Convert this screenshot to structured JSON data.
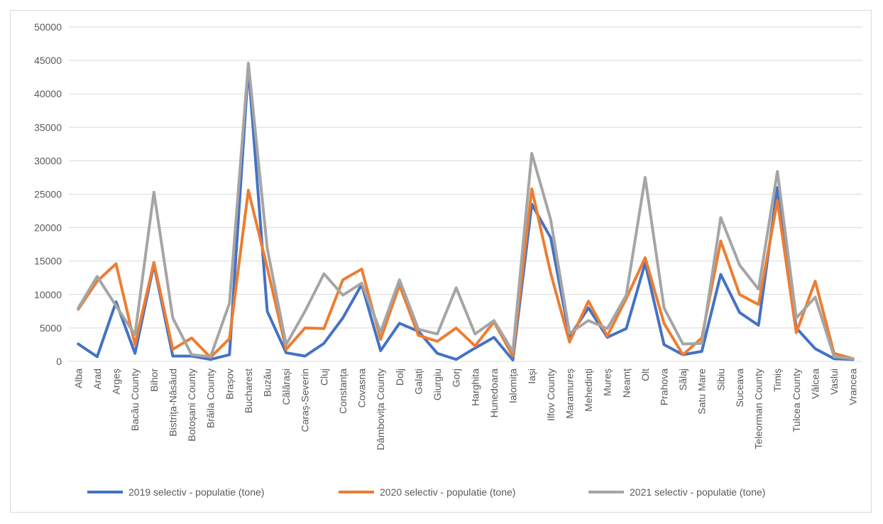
{
  "chart_data": {
    "type": "line",
    "title": "",
    "xlabel": "",
    "ylabel": "",
    "ylim": [
      0,
      50000
    ],
    "yticks": [
      0,
      5000,
      10000,
      15000,
      20000,
      25000,
      30000,
      35000,
      40000,
      45000,
      50000
    ],
    "grid": true,
    "legend_position": "bottom",
    "categories": [
      "Alba",
      "Arad",
      "Argeș",
      "Bacău County",
      "Bihor",
      "Bistrița-Năsăud",
      "Botoșani County",
      "Brăila County",
      "Brașov",
      "Bucharest",
      "Buzău",
      "Călărași",
      "Caraș-Severin",
      "Cluj",
      "Constanța",
      "Covasna",
      "Dâmbovița County",
      "Dolj",
      "Galați",
      "Giurgiu",
      "Gorj",
      "Harghita",
      "Hunedoara",
      "Ialomița",
      "Iași",
      "Ilfov County",
      "Maramureș",
      "Mehedinți",
      "Mureș",
      "Neamț",
      "Olt",
      "Prahova",
      "Sălaj",
      "Satu Mare",
      "Sibiu",
      "Suceava",
      "Teleorman County",
      "Timiș",
      "Tulcea County",
      "Vâlcea",
      "Vaslui",
      "Vrancea"
    ],
    "series": [
      {
        "name": "2019 selectiv - populatie (tone)",
        "color": "#4472c4",
        "values": [
          2600,
          700,
          8900,
          1200,
          14500,
          800,
          800,
          300,
          1000,
          44000,
          7500,
          1300,
          800,
          2700,
          6500,
          11500,
          1600,
          5700,
          4500,
          1200,
          300,
          2000,
          3600,
          200,
          23500,
          18500,
          3700,
          8000,
          3600,
          4900,
          14700,
          2500,
          1000,
          1500,
          13000,
          7300,
          5400,
          26000,
          5000,
          1900,
          400,
          300
        ]
      },
      {
        "name": "2020 selectiv - populatie (tone)",
        "color": "#ed7d31",
        "values": [
          7800,
          12000,
          14600,
          2500,
          14800,
          1800,
          3500,
          600,
          3400,
          25600,
          14000,
          1800,
          5000,
          4900,
          12200,
          13800,
          3300,
          11400,
          3900,
          3000,
          5000,
          2300,
          5900,
          800,
          25800,
          13200,
          2900,
          9000,
          3800,
          9400,
          15500,
          5700,
          1000,
          3500,
          18000,
          10000,
          8500,
          24000,
          4300,
          12000,
          1200,
          400
        ]
      },
      {
        "name": "2021 selectiv - populatie (tone)",
        "color": "#a5a5a5",
        "values": [
          8000,
          12700,
          8300,
          4000,
          25300,
          6500,
          1000,
          700,
          8700,
          44600,
          16900,
          2500,
          7500,
          13100,
          9900,
          11700,
          4400,
          12200,
          4800,
          4100,
          11000,
          4100,
          6100,
          1500,
          31100,
          21200,
          4200,
          6100,
          4900,
          9900,
          27500,
          8000,
          2600,
          2700,
          21500,
          14400,
          10800,
          28400,
          6500,
          9600,
          700,
          400
        ]
      }
    ]
  }
}
